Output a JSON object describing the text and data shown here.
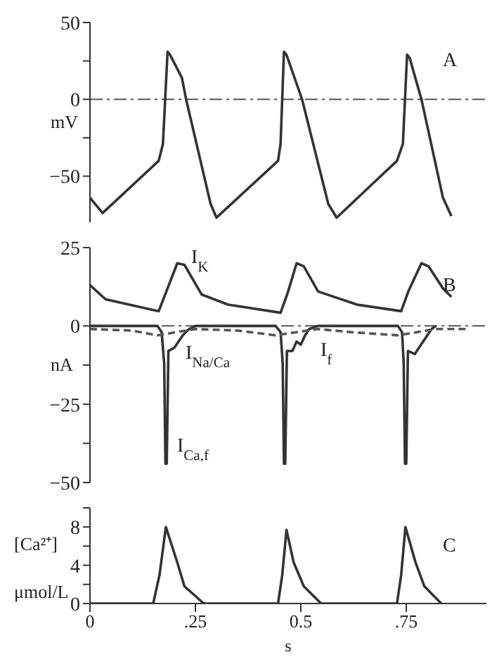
{
  "chart_data": [
    {
      "type": "line",
      "ylabel": "mV",
      "xlim": [
        0,
        0.94
      ],
      "ylim": [
        -80,
        50
      ],
      "yticks": [
        50,
        {
          "value": 25,
          "label": null
        },
        0,
        {
          "value": -25,
          "label": null
        },
        -50
      ],
      "tick_labels": "y",
      "grid": false,
      "legend": false,
      "annotations": [
        "A"
      ],
      "ref_lines": [
        {
          "axis": "y",
          "value": 0,
          "color": "#555555",
          "line_style": "dashed"
        }
      ],
      "series": [
        {
          "color": "#333333",
          "x": [
            0,
            0.03,
            0.163,
            0.173,
            0.184,
            0.19,
            0.218,
            0.228,
            0.286,
            0.3,
            0.446,
            0.452,
            0.46,
            0.466,
            0.503,
            0.565,
            0.585,
            0.728,
            0.742,
            0.752,
            0.758,
            0.786,
            0.837,
            0.857
          ],
          "values": [
            -64,
            -74,
            -40,
            -29,
            31,
            29,
            14,
            0,
            -68,
            -77,
            -40,
            -29,
            31,
            29,
            0,
            -68,
            -77,
            -40,
            -29,
            29,
            27,
            0,
            -64,
            -76
          ]
        }
      ]
    },
    {
      "type": "line",
      "ylabel": "nA",
      "xlim": [
        0,
        0.94
      ],
      "ylim": [
        -50,
        25
      ],
      "yticks": [
        25,
        0,
        {
          "value": -12.5,
          "label": null
        },
        -25,
        {
          "value": -37.5,
          "label": null
        },
        -50
      ],
      "tick_labels": "y",
      "grid": false,
      "legend": false,
      "annotations": [
        "B",
        "I$_{K}$",
        "I$_{Na/Ca}$",
        "I$_{f}$",
        "I$_{Ca,f}$"
      ],
      "ref_lines": [
        {
          "axis": "y",
          "value": 0,
          "color": "#555555",
          "line_style": "dashed"
        }
      ],
      "series": [
        {
          "color": "#333333",
          "x": [
            0,
            0.037,
            0.163,
            0.18,
            0.207,
            0.224,
            0.265,
            0.327,
            0.452,
            0.469,
            0.49,
            0.507,
            0.541,
            0.633,
            0.738,
            0.755,
            0.786,
            0.803,
            0.837,
            0.857
          ],
          "values": [
            13,
            8.5,
            4.7,
            10.6,
            20,
            19.5,
            10,
            6.8,
            4.2,
            10.6,
            20,
            19,
            11,
            6.8,
            4.7,
            11,
            20,
            19,
            12,
            9.3
          ]
        },
        {
          "color": "#333333",
          "x": [
            0,
            0.16,
            0.17,
            0.176,
            0.179,
            0.182,
            0.186,
            0.2,
            0.21,
            0.22,
            0.235,
            0.25,
            0.44,
            0.452,
            0.457,
            0.46,
            0.463,
            0.467,
            0.48,
            0.49,
            0.5,
            0.51,
            0.52,
            0.54,
            0.73,
            0.74,
            0.744,
            0.747,
            0.75,
            0.754,
            0.77,
            0.78,
            0.79,
            0.8,
            0.81,
            0.82
          ],
          "values": [
            0,
            0,
            -2,
            -12,
            -44,
            -44,
            -8,
            -7,
            -5,
            -3,
            -1,
            0,
            0,
            -2,
            -12,
            -44,
            -44,
            -8,
            -8,
            -5,
            -6,
            -3,
            -1,
            0,
            0,
            -2,
            -12,
            -44,
            -44,
            -8,
            -9,
            -7,
            -5,
            -3,
            -1,
            0
          ]
        },
        {
          "color": "#555555",
          "line_style": "dashed",
          "x": [
            0,
            0.1,
            0.16,
            0.25,
            0.35,
            0.44,
            0.54,
            0.62,
            0.73,
            0.82,
            0.9
          ],
          "values": [
            -1,
            -1.5,
            -3,
            -1,
            -1.5,
            -3,
            -1,
            -2,
            -3,
            -1,
            -1
          ]
        }
      ]
    },
    {
      "type": "line",
      "ylabel": "[Ca²⁺] μmol/L",
      "xlabel": "s",
      "xlim": [
        0,
        0.94
      ],
      "ylim": [
        0,
        10
      ],
      "xticks": [
        0,
        {
          "value": 0.25,
          "label": ".25"
        },
        0.5,
        {
          "value": 0.75,
          "label": ".75"
        }
      ],
      "yticks": [
        0,
        {
          "value": 2,
          "label": null
        },
        4,
        {
          "value": 6,
          "label": null
        },
        8,
        {
          "value": 10,
          "label": null
        }
      ],
      "grid": false,
      "legend": false,
      "annotations": [
        "C"
      ],
      "series": [
        {
          "color": "#333333",
          "x": [
            0,
            0.15,
            0.165,
            0.18,
            0.207,
            0.224,
            0.27,
            0.446,
            0.456,
            0.466,
            0.483,
            0.507,
            0.548,
            0.728,
            0.738,
            0.748,
            0.772,
            0.793,
            0.833
          ],
          "values": [
            0,
            0,
            3,
            8,
            4.3,
            1.8,
            0,
            0,
            3,
            7.7,
            4.3,
            1.8,
            0,
            0,
            3,
            8,
            4.3,
            1.8,
            0
          ]
        }
      ]
    }
  ]
}
